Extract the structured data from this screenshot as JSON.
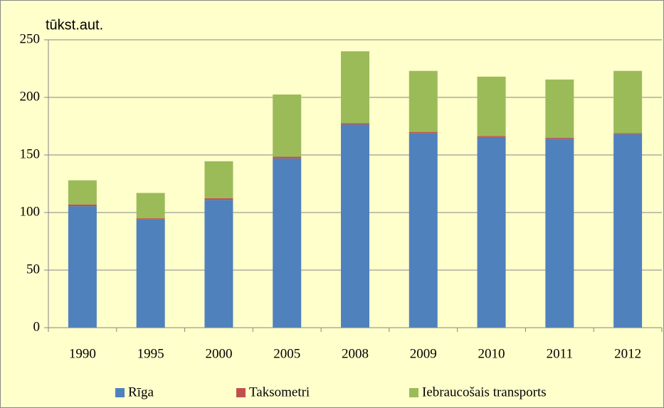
{
  "chart_data": {
    "type": "stacked-bar",
    "y_label": "tūkst.aut.",
    "categories": [
      "1990",
      "1995",
      "2000",
      "2005",
      "2008",
      "2009",
      "2010",
      "2011",
      "2012"
    ],
    "series": [
      {
        "name": "Rīga",
        "color": "#4f81bd",
        "values": [
          105.5,
          94,
          111,
          147,
          176.5,
          169,
          165.5,
          164,
          168
        ]
      },
      {
        "name": "Taksometri",
        "color": "#c0504d",
        "values": [
          1.5,
          1,
          1.5,
          1.5,
          1,
          1,
          1,
          1,
          1
        ]
      },
      {
        "name": "Iebraucošais transports",
        "color": "#9bbb59",
        "values": [
          21,
          22,
          32,
          54,
          62.5,
          53,
          51.5,
          50.5,
          54
        ]
      }
    ],
    "ylim": [
      0,
      250
    ],
    "yticks": [
      0,
      50,
      100,
      150,
      200,
      250
    ],
    "grid": true
  }
}
